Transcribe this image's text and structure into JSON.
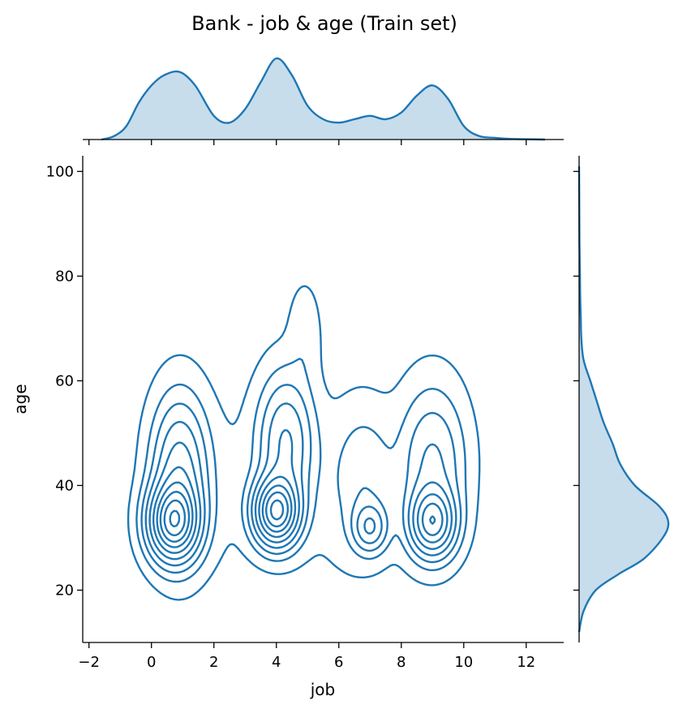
{
  "chart_data": {
    "type": "kde-joint",
    "title": "Bank - job & age (Train set)",
    "xlabel": "job",
    "ylabel": "age",
    "xlim": [
      -2.2,
      13.2
    ],
    "ylim": [
      10,
      103
    ],
    "xticks": [
      -2,
      0,
      2,
      4,
      6,
      8,
      10,
      12
    ],
    "xtick_labels": [
      "−2",
      "0",
      "2",
      "4",
      "6",
      "8",
      "10",
      "12"
    ],
    "yticks": [
      20,
      40,
      60,
      80,
      100
    ],
    "ytick_labels": [
      "20",
      "40",
      "60",
      "80",
      "100"
    ],
    "grid": false,
    "color": "#1f77b4",
    "density_peaks": [
      {
        "job": 0.7,
        "age": 33
      },
      {
        "job": 4.0,
        "age": 35
      },
      {
        "job": 7.0,
        "age": 32
      },
      {
        "job": 9.0,
        "age": 33
      }
    ],
    "marginal_x": {
      "x": [
        -1.6,
        -1.2,
        -0.8,
        -0.4,
        0.0,
        0.4,
        0.9,
        1.4,
        2.0,
        2.5,
        3.0,
        3.5,
        4.0,
        4.5,
        5.0,
        5.5,
        6.0,
        6.5,
        7.0,
        7.5,
        8.0,
        8.5,
        9.0,
        9.5,
        10.0,
        10.5,
        11.0,
        11.5,
        12.0,
        12.6
      ],
      "density": [
        0.0,
        0.01,
        0.04,
        0.11,
        0.16,
        0.19,
        0.2,
        0.16,
        0.07,
        0.05,
        0.09,
        0.17,
        0.24,
        0.19,
        0.1,
        0.06,
        0.05,
        0.06,
        0.07,
        0.06,
        0.08,
        0.13,
        0.16,
        0.12,
        0.04,
        0.01,
        0.005,
        0.002,
        0.001,
        0.0
      ]
    },
    "marginal_y": {
      "age": [
        12,
        16,
        20,
        23,
        26,
        30,
        33,
        36,
        40,
        44,
        48,
        52,
        56,
        60,
        64,
        68,
        72,
        76,
        80,
        86,
        92,
        101
      ],
      "density": [
        0.0,
        0.004,
        0.015,
        0.035,
        0.058,
        0.075,
        0.08,
        0.072,
        0.05,
        0.037,
        0.03,
        0.022,
        0.016,
        0.01,
        0.004,
        0.002,
        0.0015,
        0.001,
        0.0008,
        0.0004,
        0.0002,
        0.0
      ]
    }
  }
}
